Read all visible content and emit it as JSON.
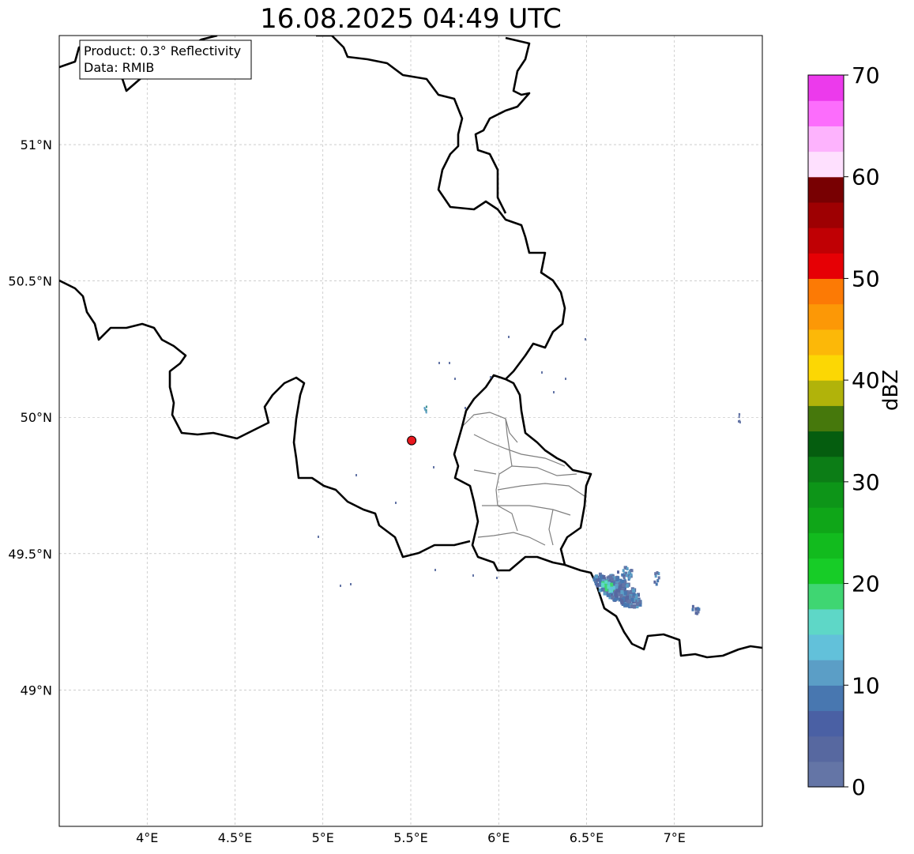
{
  "title": "16.08.2025 04:49 UTC",
  "info_box": {
    "product": "Product: 0.3° Reflectivity",
    "source": "Data: RMIB"
  },
  "map": {
    "lon_range": [
      3.5,
      7.5
    ],
    "lat_range": [
      48.5,
      51.4
    ],
    "lon_ticks": [
      {
        "value": 4.0,
        "label": "4°E"
      },
      {
        "value": 4.5,
        "label": "4.5°E"
      },
      {
        "value": 5.0,
        "label": "5°E"
      },
      {
        "value": 5.5,
        "label": "5.5°E"
      },
      {
        "value": 6.0,
        "label": "6°E"
      },
      {
        "value": 6.5,
        "label": "6.5°E"
      },
      {
        "value": 7.0,
        "label": "7°E"
      }
    ],
    "lat_ticks": [
      {
        "value": 49.0,
        "label": "49°N"
      },
      {
        "value": 49.5,
        "label": "49.5°N"
      },
      {
        "value": 50.0,
        "label": "50°N"
      },
      {
        "value": 50.5,
        "label": "50.5°N"
      },
      {
        "value": 51.0,
        "label": "51°N"
      }
    ],
    "grid": true,
    "radar_site": {
      "lon": 5.505,
      "lat": 49.915,
      "color": "#e8181e"
    }
  },
  "colorbar": {
    "label": "dBZ",
    "ticks": [
      "0",
      "10",
      "20",
      "30",
      "40",
      "50",
      "60",
      "70"
    ],
    "colors": [
      "#6475a6",
      "#5768a0",
      "#4a60a4",
      "#4877b0",
      "#5b9ec6",
      "#62c1da",
      "#5ed7c7",
      "#3fd672",
      "#17cc27",
      "#12bb1e",
      "#0fa618",
      "#0d9518",
      "#0c7d16",
      "#055d0f",
      "#46780c",
      "#b1b30a",
      "#fcd704",
      "#fcb808",
      "#fc9806",
      "#fc7a05",
      "#e60005",
      "#c00004",
      "#9e0002",
      "#780002",
      "#fee0fe",
      "#fdb3fd",
      "#fc6dfc",
      "#ec3aec"
    ],
    "range": [
      0,
      70
    ]
  }
}
